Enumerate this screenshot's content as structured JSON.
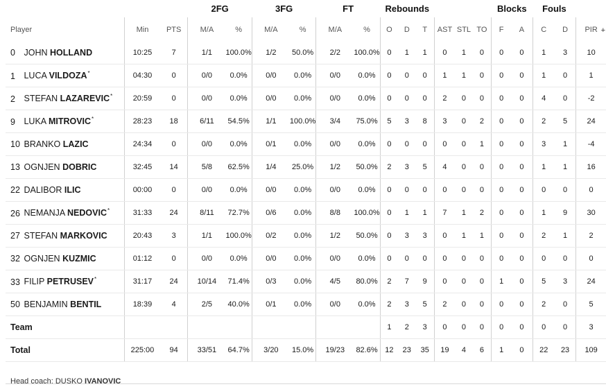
{
  "groups": {
    "fg2": "2FG",
    "fg3": "3FG",
    "ft": "FT",
    "rebounds": "Rebounds",
    "blocks": "Blocks",
    "fouls": "Fouls"
  },
  "headers": [
    "Player",
    "Min",
    "PTS",
    "M/A",
    "%",
    "M/A",
    "%",
    "M/A",
    "%",
    "O",
    "D",
    "T",
    "AST",
    "STL",
    "TO",
    "F",
    "A",
    "C",
    "D",
    "PIR"
  ],
  "more_indicator": "+",
  "players": [
    {
      "num": "0",
      "first": "JOHN",
      "last": "HOLLAND",
      "star": false,
      "min": "10:25",
      "pts": "7",
      "fg2_ma": "1/1",
      "fg2_pct": "100.0%",
      "fg3_ma": "1/2",
      "fg3_pct": "50.0%",
      "ft_ma": "2/2",
      "ft_pct": "100.0%",
      "o": "0",
      "d": "1",
      "t": "1",
      "ast": "0",
      "stl": "1",
      "to": "0",
      "bf": "0",
      "ba": "0",
      "fc": "1",
      "fd": "3",
      "pir": "10"
    },
    {
      "num": "1",
      "first": "LUCA",
      "last": "VILDOZA",
      "star": true,
      "min": "04:30",
      "pts": "0",
      "fg2_ma": "0/0",
      "fg2_pct": "0.0%",
      "fg3_ma": "0/0",
      "fg3_pct": "0.0%",
      "ft_ma": "0/0",
      "ft_pct": "0.0%",
      "o": "0",
      "d": "0",
      "t": "0",
      "ast": "1",
      "stl": "1",
      "to": "0",
      "bf": "0",
      "ba": "0",
      "fc": "1",
      "fd": "0",
      "pir": "1"
    },
    {
      "num": "2",
      "first": "STEFAN",
      "last": "LAZAREVIC",
      "star": true,
      "min": "20:59",
      "pts": "0",
      "fg2_ma": "0/0",
      "fg2_pct": "0.0%",
      "fg3_ma": "0/0",
      "fg3_pct": "0.0%",
      "ft_ma": "0/0",
      "ft_pct": "0.0%",
      "o": "0",
      "d": "0",
      "t": "0",
      "ast": "2",
      "stl": "0",
      "to": "0",
      "bf": "0",
      "ba": "0",
      "fc": "4",
      "fd": "0",
      "pir": "-2"
    },
    {
      "num": "9",
      "first": "LUKA",
      "last": "MITROVIC",
      "star": true,
      "min": "28:23",
      "pts": "18",
      "fg2_ma": "6/11",
      "fg2_pct": "54.5%",
      "fg3_ma": "1/1",
      "fg3_pct": "100.0%",
      "ft_ma": "3/4",
      "ft_pct": "75.0%",
      "o": "5",
      "d": "3",
      "t": "8",
      "ast": "3",
      "stl": "0",
      "to": "2",
      "bf": "0",
      "ba": "0",
      "fc": "2",
      "fd": "5",
      "pir": "24"
    },
    {
      "num": "10",
      "first": "BRANKO",
      "last": "LAZIC",
      "star": false,
      "min": "24:34",
      "pts": "0",
      "fg2_ma": "0/0",
      "fg2_pct": "0.0%",
      "fg3_ma": "0/1",
      "fg3_pct": "0.0%",
      "ft_ma": "0/0",
      "ft_pct": "0.0%",
      "o": "0",
      "d": "0",
      "t": "0",
      "ast": "0",
      "stl": "0",
      "to": "1",
      "bf": "0",
      "ba": "0",
      "fc": "3",
      "fd": "1",
      "pir": "-4"
    },
    {
      "num": "13",
      "first": "OGNJEN",
      "last": "DOBRIC",
      "star": false,
      "min": "32:45",
      "pts": "14",
      "fg2_ma": "5/8",
      "fg2_pct": "62.5%",
      "fg3_ma": "1/4",
      "fg3_pct": "25.0%",
      "ft_ma": "1/2",
      "ft_pct": "50.0%",
      "o": "2",
      "d": "3",
      "t": "5",
      "ast": "4",
      "stl": "0",
      "to": "0",
      "bf": "0",
      "ba": "0",
      "fc": "1",
      "fd": "1",
      "pir": "16"
    },
    {
      "num": "22",
      "first": "DALIBOR",
      "last": "ILIC",
      "star": false,
      "min": "00:00",
      "pts": "0",
      "fg2_ma": "0/0",
      "fg2_pct": "0.0%",
      "fg3_ma": "0/0",
      "fg3_pct": "0.0%",
      "ft_ma": "0/0",
      "ft_pct": "0.0%",
      "o": "0",
      "d": "0",
      "t": "0",
      "ast": "0",
      "stl": "0",
      "to": "0",
      "bf": "0",
      "ba": "0",
      "fc": "0",
      "fd": "0",
      "pir": "0"
    },
    {
      "num": "26",
      "first": "NEMANJA",
      "last": "NEDOVIC",
      "star": true,
      "min": "31:33",
      "pts": "24",
      "fg2_ma": "8/11",
      "fg2_pct": "72.7%",
      "fg3_ma": "0/6",
      "fg3_pct": "0.0%",
      "ft_ma": "8/8",
      "ft_pct": "100.0%",
      "o": "0",
      "d": "1",
      "t": "1",
      "ast": "7",
      "stl": "1",
      "to": "2",
      "bf": "0",
      "ba": "0",
      "fc": "1",
      "fd": "9",
      "pir": "30"
    },
    {
      "num": "27",
      "first": "STEFAN",
      "last": "MARKOVIC",
      "star": false,
      "min": "20:43",
      "pts": "3",
      "fg2_ma": "1/1",
      "fg2_pct": "100.0%",
      "fg3_ma": "0/2",
      "fg3_pct": "0.0%",
      "ft_ma": "1/2",
      "ft_pct": "50.0%",
      "o": "0",
      "d": "3",
      "t": "3",
      "ast": "0",
      "stl": "1",
      "to": "1",
      "bf": "0",
      "ba": "0",
      "fc": "2",
      "fd": "1",
      "pir": "2"
    },
    {
      "num": "32",
      "first": "OGNJEN",
      "last": "KUZMIC",
      "star": false,
      "min": "01:12",
      "pts": "0",
      "fg2_ma": "0/0",
      "fg2_pct": "0.0%",
      "fg3_ma": "0/0",
      "fg3_pct": "0.0%",
      "ft_ma": "0/0",
      "ft_pct": "0.0%",
      "o": "0",
      "d": "0",
      "t": "0",
      "ast": "0",
      "stl": "0",
      "to": "0",
      "bf": "0",
      "ba": "0",
      "fc": "0",
      "fd": "0",
      "pir": "0"
    },
    {
      "num": "33",
      "first": "FILIP",
      "last": "PETRUSEV",
      "star": true,
      "min": "31:17",
      "pts": "24",
      "fg2_ma": "10/14",
      "fg2_pct": "71.4%",
      "fg3_ma": "0/3",
      "fg3_pct": "0.0%",
      "ft_ma": "4/5",
      "ft_pct": "80.0%",
      "o": "2",
      "d": "7",
      "t": "9",
      "ast": "0",
      "stl": "0",
      "to": "0",
      "bf": "1",
      "ba": "0",
      "fc": "5",
      "fd": "3",
      "pir": "24"
    },
    {
      "num": "50",
      "first": "BENJAMIN",
      "last": "BENTIL",
      "star": false,
      "min": "18:39",
      "pts": "4",
      "fg2_ma": "2/5",
      "fg2_pct": "40.0%",
      "fg3_ma": "0/1",
      "fg3_pct": "0.0%",
      "ft_ma": "0/0",
      "ft_pct": "0.0%",
      "o": "2",
      "d": "3",
      "t": "5",
      "ast": "2",
      "stl": "0",
      "to": "0",
      "bf": "0",
      "ba": "0",
      "fc": "2",
      "fd": "0",
      "pir": "5"
    }
  ],
  "team": {
    "label": "Team",
    "min": "",
    "pts": "",
    "fg2_ma": "",
    "fg2_pct": "",
    "fg3_ma": "",
    "fg3_pct": "",
    "ft_ma": "",
    "ft_pct": "",
    "o": "1",
    "d": "2",
    "t": "3",
    "ast": "0",
    "stl": "0",
    "to": "0",
    "bf": "0",
    "ba": "0",
    "fc": "0",
    "fd": "0",
    "pir": "3"
  },
  "total": {
    "label": "Total",
    "min": "225:00",
    "pts": "94",
    "fg2_ma": "33/51",
    "fg2_pct": "64.7%",
    "fg3_ma": "3/20",
    "fg3_pct": "15.0%",
    "ft_ma": "19/23",
    "ft_pct": "82.6%",
    "o": "12",
    "d": "23",
    "t": "35",
    "ast": "19",
    "stl": "4",
    "to": "6",
    "bf": "1",
    "ba": "0",
    "fc": "22",
    "fd": "23",
    "pir": "109"
  },
  "coach": {
    "label": "Head coach:",
    "first": "DUSKO",
    "last": "IVANOVIC"
  }
}
